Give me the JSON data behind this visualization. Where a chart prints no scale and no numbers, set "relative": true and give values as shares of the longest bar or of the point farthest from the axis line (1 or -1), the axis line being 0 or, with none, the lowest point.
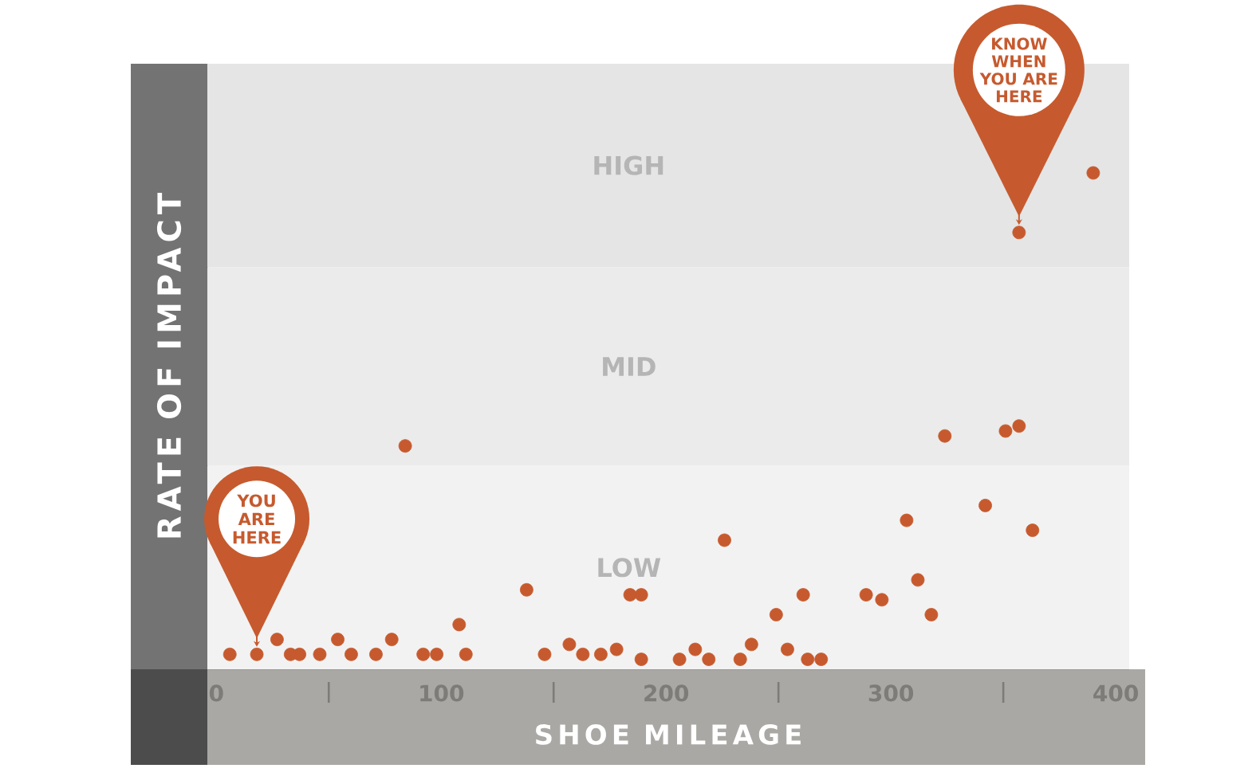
{
  "chart_data": {
    "type": "scatter",
    "xlabel": "SHOE MILEAGE",
    "ylabel": "RATE OF IMPACT",
    "relative": true,
    "color": "#c65a2e",
    "marker": "circle",
    "x": [
      6,
      18,
      27,
      33,
      37,
      46,
      54,
      60,
      71,
      78,
      84,
      92,
      98,
      108,
      111,
      138,
      146,
      157,
      163,
      171,
      178,
      184,
      189,
      189,
      206,
      213,
      219,
      226,
      233,
      238,
      249,
      254,
      261,
      263,
      269,
      289,
      296,
      307,
      312,
      318,
      324,
      342,
      351,
      357,
      357,
      363,
      390
    ],
    "values": [
      0.03,
      0.03,
      0.06,
      0.03,
      0.03,
      0.03,
      0.06,
      0.03,
      0.03,
      0.06,
      0.45,
      0.03,
      0.03,
      0.09,
      0.03,
      0.16,
      0.03,
      0.05,
      0.03,
      0.03,
      0.04,
      0.15,
      0.15,
      0.02,
      0.02,
      0.04,
      0.02,
      0.26,
      0.02,
      0.05,
      0.11,
      0.04,
      0.15,
      0.02,
      0.02,
      0.15,
      0.14,
      0.3,
      0.18,
      0.11,
      0.47,
      0.33,
      0.48,
      0.49,
      0.88,
      0.28,
      1
    ],
    "xlim": [
      -4,
      406
    ],
    "xticks": [
      0,
      {
        "value": 50,
        "label": null
      },
      100,
      {
        "value": 150,
        "label": null
      },
      200,
      {
        "value": 250,
        "label": null
      },
      300,
      {
        "value": 350,
        "label": null
      },
      400
    ],
    "bands": [
      {
        "axis": "y",
        "from": 0,
        "to": 0.41,
        "label": "LOW",
        "color": "#f2f2f2"
      },
      {
        "axis": "y",
        "from": 0.41,
        "to": 0.81,
        "label": "MID",
        "color": "#ebebeb"
      },
      {
        "axis": "y",
        "from": 0.81,
        "to": 1.22,
        "label": "HIGH",
        "color": "#e5e5e5"
      }
    ],
    "annotations": [
      {
        "text": "YOU ARE HERE",
        "x": 18,
        "y": 0.03
      },
      {
        "text": "KNOW WHEN YOU ARE HERE",
        "x": 357,
        "y": 0.88
      }
    ]
  }
}
